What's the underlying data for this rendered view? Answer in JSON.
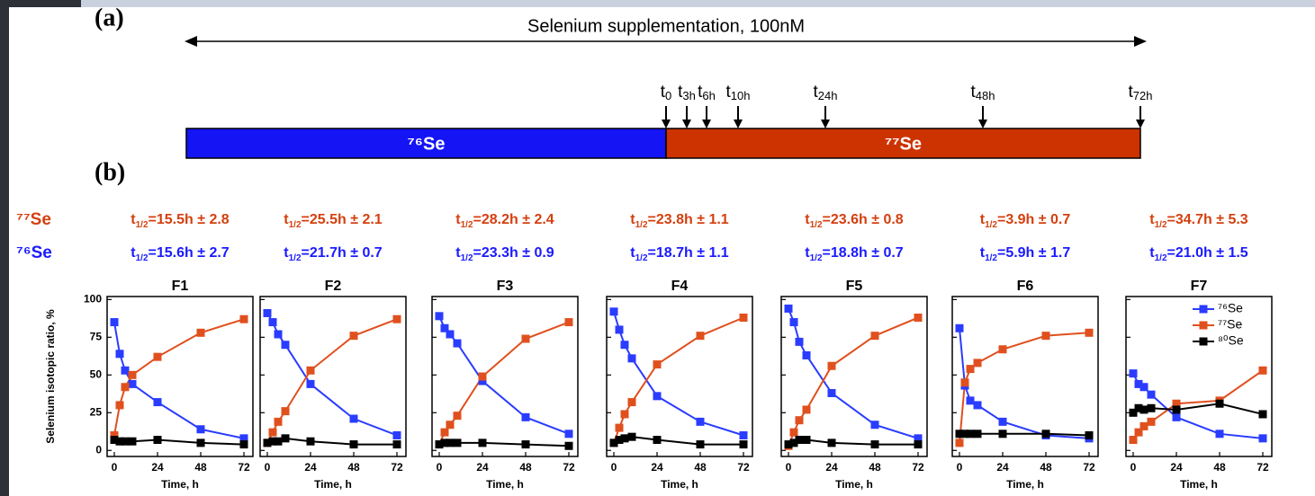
{
  "panel_a": {
    "label": "(a)",
    "title": "Selenium supplementation, 100nM",
    "time_points": [
      {
        "base": "t",
        "sub": "0"
      },
      {
        "base": "t",
        "sub": "3h"
      },
      {
        "base": "t",
        "sub": "6h"
      },
      {
        "base": "t",
        "sub": "10h"
      },
      {
        "base": "t",
        "sub": "24h"
      },
      {
        "base": "t",
        "sub": "48h"
      },
      {
        "base": "t",
        "sub": "72h"
      }
    ],
    "bars": [
      {
        "label": "⁷⁶Se",
        "color": "#1414f5"
      },
      {
        "label": "⁷⁷Se",
        "color": "#cc3300"
      }
    ]
  },
  "panel_b": {
    "label": "(b)",
    "row_labels": [
      {
        "label": "⁷⁷Se",
        "color": "#d4400f"
      },
      {
        "label": "⁷⁶Se",
        "color": "#1a1aff"
      }
    ]
  },
  "chart_data": [
    {
      "type": "line",
      "title": "F1",
      "xlabel": "Time, h",
      "ylabel": "Selenium isotopic ratio, %",
      "annotations": [
        {
          "base": "t",
          "sub": "1/2",
          "text": "=15.5h ± 2.8",
          "color": "#d4400f"
        },
        {
          "base": "t",
          "sub": "1/2",
          "text": "=15.6h ± 2.7",
          "color": "#1a1aff"
        }
      ],
      "x": [
        0,
        3,
        6,
        10,
        24,
        48,
        72
      ],
      "xlim": [
        -4,
        77
      ],
      "xticks": [
        0,
        24,
        48,
        72
      ],
      "ylim": [
        -4,
        102
      ],
      "yticks": [
        0,
        25,
        50,
        75,
        100
      ],
      "ytick_labels": true,
      "series": [
        {
          "color": "#2a3cff",
          "values": [
            85,
            64,
            53,
            44,
            32,
            14,
            8
          ]
        },
        {
          "color": "#e0501e",
          "values": [
            10,
            30,
            42,
            50,
            62,
            78,
            87
          ]
        },
        {
          "color": "#000000",
          "values": [
            7,
            6,
            6,
            6,
            7,
            5,
            4
          ]
        }
      ]
    },
    {
      "type": "line",
      "title": "F2",
      "xlabel": "Time, h",
      "annotations": [
        {
          "base": "t",
          "sub": "1/2",
          "text": "=25.5h ± 2.1",
          "color": "#d4400f"
        },
        {
          "base": "t",
          "sub": "1/2",
          "text": "=21.7h ± 0.7",
          "color": "#1a1aff"
        }
      ],
      "x": [
        0,
        3,
        6,
        10,
        24,
        48,
        72
      ],
      "xlim": [
        -4,
        77
      ],
      "xticks": [
        0,
        24,
        48,
        72
      ],
      "ylim": [
        -4,
        102
      ],
      "yticks": [
        0,
        25,
        50,
        75,
        100
      ],
      "ytick_labels": false,
      "series": [
        {
          "color": "#2a3cff",
          "values": [
            91,
            85,
            77,
            70,
            44,
            21,
            10
          ]
        },
        {
          "color": "#e0501e",
          "values": [
            5,
            12,
            19,
            26,
            53,
            76,
            87
          ]
        },
        {
          "color": "#000000",
          "values": [
            5,
            6,
            6,
            8,
            6,
            4,
            4
          ]
        }
      ]
    },
    {
      "type": "line",
      "title": "F3",
      "xlabel": "Time, h",
      "annotations": [
        {
          "base": "t",
          "sub": "1/2",
          "text": "=28.2h ± 2.4",
          "color": "#d4400f"
        },
        {
          "base": "t",
          "sub": "1/2",
          "text": "=23.3h ± 0.9",
          "color": "#1a1aff"
        }
      ],
      "x": [
        0,
        3,
        6,
        10,
        24,
        48,
        72
      ],
      "xlim": [
        -4,
        77
      ],
      "xticks": [
        0,
        24,
        48,
        72
      ],
      "ylim": [
        -4,
        102
      ],
      "yticks": [
        0,
        25,
        50,
        75,
        100
      ],
      "ytick_labels": false,
      "series": [
        {
          "color": "#2a3cff",
          "values": [
            89,
            81,
            77,
            71,
            46,
            22,
            11
          ]
        },
        {
          "color": "#e0501e",
          "values": [
            4,
            12,
            17,
            23,
            49,
            74,
            85
          ]
        },
        {
          "color": "#000000",
          "values": [
            4,
            5,
            5,
            5,
            5,
            4,
            3
          ]
        }
      ]
    },
    {
      "type": "line",
      "title": "F4",
      "xlabel": "Time, h",
      "annotations": [
        {
          "base": "t",
          "sub": "1/2",
          "text": "=23.8h ± 1.1",
          "color": "#d4400f"
        },
        {
          "base": "t",
          "sub": "1/2",
          "text": "=18.7h ± 1.1",
          "color": "#1a1aff"
        }
      ],
      "x": [
        0,
        3,
        6,
        10,
        24,
        48,
        72
      ],
      "xlim": [
        -4,
        77
      ],
      "xticks": [
        0,
        24,
        48,
        72
      ],
      "ylim": [
        -4,
        102
      ],
      "yticks": [
        0,
        25,
        50,
        75,
        100
      ],
      "ytick_labels": false,
      "series": [
        {
          "color": "#2a3cff",
          "values": [
            92,
            80,
            70,
            61,
            36,
            19,
            10
          ]
        },
        {
          "color": "#e0501e",
          "values": [
            5,
            15,
            24,
            32,
            57,
            76,
            88
          ]
        },
        {
          "color": "#000000",
          "values": [
            5,
            7,
            8,
            9,
            7,
            4,
            4
          ]
        }
      ]
    },
    {
      "type": "line",
      "title": "F5",
      "xlabel": "Time, h",
      "annotations": [
        {
          "base": "t",
          "sub": "1/2",
          "text": "=23.6h ± 0.8",
          "color": "#d4400f"
        },
        {
          "base": "t",
          "sub": "1/2",
          "text": "=18.8h ± 0.7",
          "color": "#1a1aff"
        }
      ],
      "x": [
        0,
        3,
        6,
        10,
        24,
        48,
        72
      ],
      "xlim": [
        -4,
        77
      ],
      "xticks": [
        0,
        24,
        48,
        72
      ],
      "ylim": [
        -4,
        102
      ],
      "yticks": [
        0,
        25,
        50,
        75,
        100
      ],
      "ytick_labels": false,
      "series": [
        {
          "color": "#2a3cff",
          "values": [
            94,
            85,
            72,
            63,
            38,
            17,
            8
          ]
        },
        {
          "color": "#e0501e",
          "values": [
            3,
            12,
            20,
            27,
            56,
            76,
            88
          ]
        },
        {
          "color": "#000000",
          "values": [
            4,
            5,
            7,
            7,
            5,
            4,
            4
          ]
        }
      ]
    },
    {
      "type": "line",
      "title": "F6",
      "xlabel": "Time, h",
      "annotations": [
        {
          "base": "t",
          "sub": "1/2",
          "text": "=3.9h ± 0.7",
          "color": "#d4400f"
        },
        {
          "base": "t",
          "sub": "1/2",
          "text": "=5.9h ± 1.7",
          "color": "#1a1aff"
        }
      ],
      "x": [
        0,
        3,
        6,
        10,
        24,
        48,
        72
      ],
      "xlim": [
        -4,
        77
      ],
      "xticks": [
        0,
        24,
        48,
        72
      ],
      "ylim": [
        -4,
        102
      ],
      "yticks": [
        0,
        25,
        50,
        75,
        100
      ],
      "ytick_labels": false,
      "series": [
        {
          "color": "#2a3cff",
          "values": [
            81,
            43,
            33,
            30,
            19,
            10,
            8
          ]
        },
        {
          "color": "#e0501e",
          "values": [
            5,
            45,
            54,
            58,
            67,
            76,
            78
          ]
        },
        {
          "color": "#000000",
          "values": [
            11,
            11,
            11,
            11,
            11,
            11,
            10
          ]
        }
      ]
    },
    {
      "type": "line",
      "title": "F7",
      "xlabel": "Time, h",
      "legend": "upper right",
      "annotations": [
        {
          "base": "t",
          "sub": "1/2",
          "text": "=34.7h ± 5.3",
          "color": "#d4400f"
        },
        {
          "base": "t",
          "sub": "1/2",
          "text": "=21.0h ± 1.5",
          "color": "#1a1aff"
        }
      ],
      "x": [
        0,
        3,
        6,
        10,
        24,
        48,
        72
      ],
      "xlim": [
        -4,
        77
      ],
      "xticks": [
        0,
        24,
        48,
        72
      ],
      "ylim": [
        -4,
        102
      ],
      "yticks": [
        0,
        25,
        50,
        75,
        100
      ],
      "ytick_labels": false,
      "series": [
        {
          "name": "⁷⁶Se",
          "color": "#2a3cff",
          "values": [
            51,
            44,
            42,
            37,
            22,
            11,
            8
          ]
        },
        {
          "name": "⁷⁷Se",
          "color": "#e0501e",
          "values": [
            7,
            12,
            16,
            19,
            31,
            33,
            53
          ]
        },
        {
          "name": "⁸⁰Se",
          "color": "#000000",
          "values": [
            25,
            28,
            27,
            28,
            27,
            31,
            24
          ]
        }
      ]
    }
  ]
}
